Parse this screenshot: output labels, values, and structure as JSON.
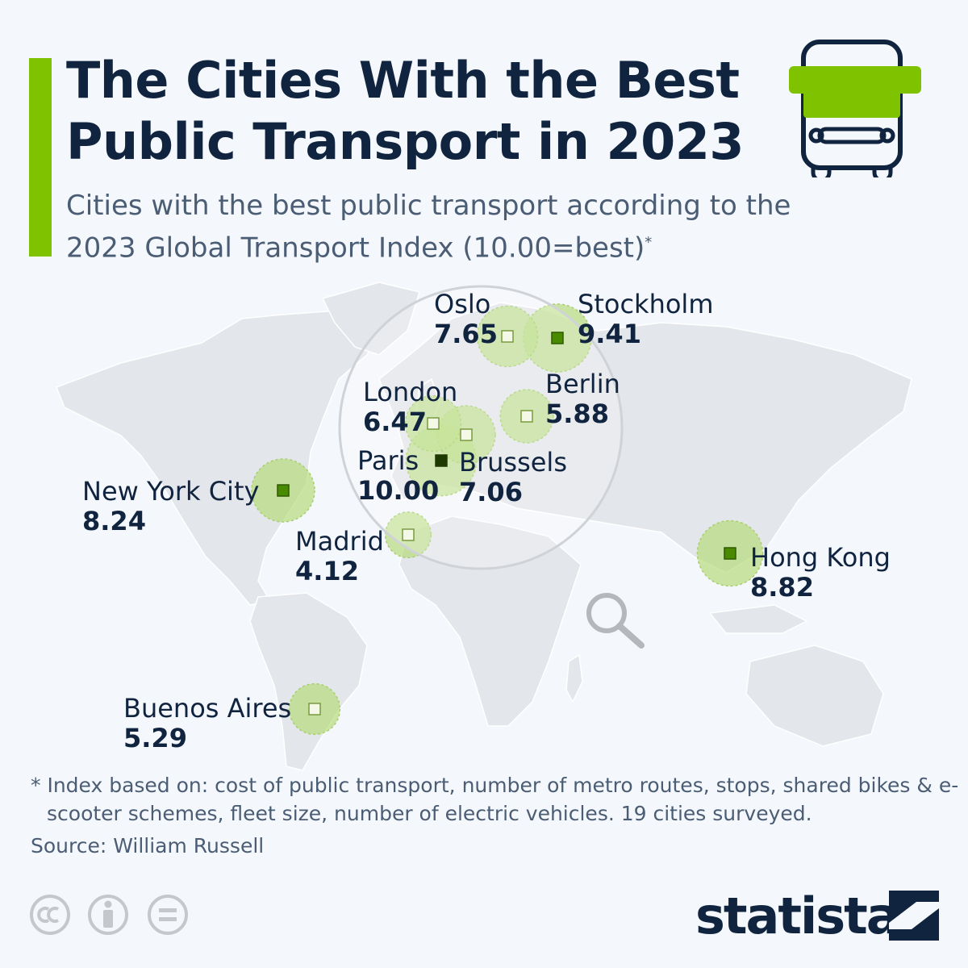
{
  "header": {
    "title": "The Cities With the Best Public Transport in 2023",
    "subtitle": "Cities with the best public transport according to the 2023 Global Transport Index (10.00=best)",
    "subtitle_marker": "*",
    "icon": "bus-icon"
  },
  "chart_data": {
    "type": "bubble-map",
    "title": "The Cities With the Best Public Transport in 2023",
    "subtitle": "Cities with the best public transport according to the 2023 Global Transport Index (10.00=best)",
    "cities": [
      {
        "name": "Paris",
        "value": "10.00",
        "score": 10.0,
        "lon": 2.35,
        "lat": 48.86
      },
      {
        "name": "Stockholm",
        "value": "9.41",
        "score": 9.41,
        "lon": 18.07,
        "lat": 59.33
      },
      {
        "name": "Hong Kong",
        "value": "8.82",
        "score": 8.82,
        "lon": 114.17,
        "lat": 22.32
      },
      {
        "name": "New York City",
        "value": "8.24",
        "score": 8.24,
        "lon": -74.0,
        "lat": 40.71
      },
      {
        "name": "Oslo",
        "value": "7.65",
        "score": 7.65,
        "lon": 10.75,
        "lat": 59.91
      },
      {
        "name": "Brussels",
        "value": "7.06",
        "score": 7.06,
        "lon": 4.35,
        "lat": 50.85
      },
      {
        "name": "London",
        "value": "6.47",
        "score": 6.47,
        "lon": -0.13,
        "lat": 51.51
      },
      {
        "name": "Berlin",
        "value": "5.88",
        "score": 5.88,
        "lon": 13.4,
        "lat": 52.52
      },
      {
        "name": "Buenos Aires",
        "value": "5.29",
        "score": 5.29,
        "lon": -58.38,
        "lat": -34.6
      },
      {
        "name": "Madrid",
        "value": "4.12",
        "score": 4.12,
        "lon": -3.7,
        "lat": 40.42
      }
    ],
    "colors": {
      "bubble": "#b9dd7f",
      "marker_high": "#4a8a00",
      "marker_top": "#1f3a00",
      "marker_low": "#f3f9e6",
      "land": "#e3e6ea"
    }
  },
  "footnote": "* Index based on: cost of public transport, number of metro routes, stops, shared bikes & e-scooter schemes, fleet size, number of electric vehicles. 19 cities surveyed.",
  "source": "Source: William Russell",
  "license_icons": [
    "cc-icon",
    "attribution-icon",
    "no-derivatives-icon"
  ],
  "brand": {
    "name": "statista",
    "accent": "#7ec200"
  }
}
